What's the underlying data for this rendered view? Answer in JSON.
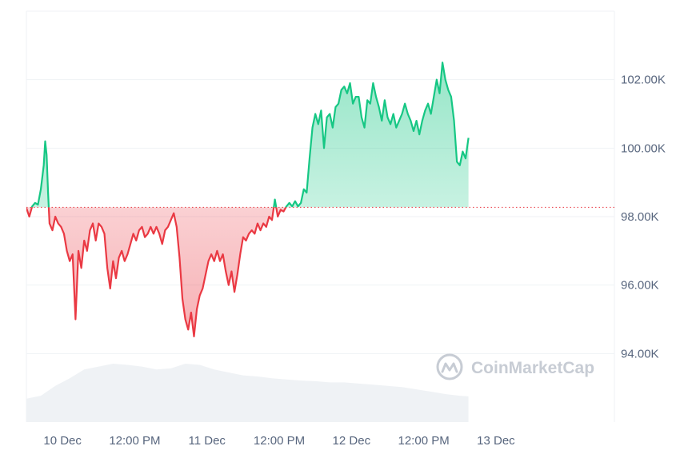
{
  "watermark": {
    "text": "CoinMarketCap"
  },
  "colors": {
    "up": "#16c784",
    "down": "#ea3943",
    "up_fill_top": "#16c784",
    "down_fill_bottom": "#ea3943",
    "grid": "#eff2f5",
    "baseline": "#ea3943",
    "volume": "#eff2f5",
    "text": "#58667e"
  },
  "chart_data": {
    "type": "area",
    "baseline_value": 98270,
    "ylim": [
      92000,
      104000
    ],
    "yticks": [
      {
        "value": 102000,
        "label": "102.00K"
      },
      {
        "value": 100000,
        "label": "100.00K"
      },
      {
        "value": 98000,
        "label": "98.00K"
      },
      {
        "value": 96000,
        "label": "96.00K"
      },
      {
        "value": 94000,
        "label": "94.00K"
      }
    ],
    "xlim": [
      0,
      4.07
    ],
    "xticks": [
      {
        "x": 0.25,
        "label": "10 Dec"
      },
      {
        "x": 0.75,
        "label": "12:00 PM"
      },
      {
        "x": 1.25,
        "label": "11 Dec"
      },
      {
        "x": 1.75,
        "label": "12:00 PM"
      },
      {
        "x": 2.25,
        "label": "12 Dec"
      },
      {
        "x": 2.75,
        "label": "12:00 PM"
      },
      {
        "x": 3.25,
        "label": "13 Dec"
      }
    ],
    "price_series": [
      [
        0.0,
        98250
      ],
      [
        0.02,
        98000
      ],
      [
        0.04,
        98300
      ],
      [
        0.06,
        98400
      ],
      [
        0.08,
        98350
      ],
      [
        0.1,
        98800
      ],
      [
        0.12,
        99500
      ],
      [
        0.13,
        100200
      ],
      [
        0.14,
        99800
      ],
      [
        0.15,
        98700
      ],
      [
        0.16,
        97800
      ],
      [
        0.18,
        97600
      ],
      [
        0.2,
        98000
      ],
      [
        0.22,
        97800
      ],
      [
        0.24,
        97700
      ],
      [
        0.26,
        97500
      ],
      [
        0.28,
        97000
      ],
      [
        0.3,
        96700
      ],
      [
        0.32,
        96900
      ],
      [
        0.34,
        95000
      ],
      [
        0.36,
        97000
      ],
      [
        0.38,
        96500
      ],
      [
        0.4,
        97300
      ],
      [
        0.42,
        97000
      ],
      [
        0.44,
        97600
      ],
      [
        0.46,
        97800
      ],
      [
        0.48,
        97300
      ],
      [
        0.5,
        97800
      ],
      [
        0.52,
        97700
      ],
      [
        0.54,
        97500
      ],
      [
        0.56,
        96500
      ],
      [
        0.58,
        95900
      ],
      [
        0.6,
        96700
      ],
      [
        0.62,
        96200
      ],
      [
        0.64,
        96800
      ],
      [
        0.66,
        97000
      ],
      [
        0.68,
        96700
      ],
      [
        0.7,
        96900
      ],
      [
        0.72,
        97200
      ],
      [
        0.74,
        97500
      ],
      [
        0.76,
        97300
      ],
      [
        0.78,
        97600
      ],
      [
        0.8,
        97700
      ],
      [
        0.82,
        97400
      ],
      [
        0.84,
        97500
      ],
      [
        0.86,
        97700
      ],
      [
        0.88,
        97500
      ],
      [
        0.9,
        97700
      ],
      [
        0.92,
        97500
      ],
      [
        0.94,
        97200
      ],
      [
        0.96,
        97600
      ],
      [
        0.98,
        97700
      ],
      [
        1.0,
        97900
      ],
      [
        1.02,
        98100
      ],
      [
        1.04,
        97700
      ],
      [
        1.06,
        96800
      ],
      [
        1.08,
        95600
      ],
      [
        1.1,
        95000
      ],
      [
        1.12,
        94700
      ],
      [
        1.14,
        95200
      ],
      [
        1.16,
        94500
      ],
      [
        1.18,
        95300
      ],
      [
        1.2,
        95700
      ],
      [
        1.22,
        95900
      ],
      [
        1.24,
        96300
      ],
      [
        1.26,
        96700
      ],
      [
        1.28,
        96900
      ],
      [
        1.3,
        96700
      ],
      [
        1.32,
        97000
      ],
      [
        1.34,
        96700
      ],
      [
        1.36,
        96900
      ],
      [
        1.38,
        96400
      ],
      [
        1.4,
        96000
      ],
      [
        1.42,
        96400
      ],
      [
        1.44,
        95800
      ],
      [
        1.46,
        96300
      ],
      [
        1.48,
        96900
      ],
      [
        1.5,
        97400
      ],
      [
        1.52,
        97300
      ],
      [
        1.54,
        97500
      ],
      [
        1.56,
        97600
      ],
      [
        1.58,
        97500
      ],
      [
        1.6,
        97800
      ],
      [
        1.62,
        97600
      ],
      [
        1.64,
        97800
      ],
      [
        1.66,
        97700
      ],
      [
        1.68,
        98000
      ],
      [
        1.7,
        97900
      ],
      [
        1.72,
        98500
      ],
      [
        1.74,
        98000
      ],
      [
        1.76,
        98200
      ],
      [
        1.78,
        98150
      ],
      [
        1.8,
        98300
      ],
      [
        1.82,
        98400
      ],
      [
        1.84,
        98300
      ],
      [
        1.86,
        98450
      ],
      [
        1.88,
        98300
      ],
      [
        1.9,
        98400
      ],
      [
        1.92,
        98800
      ],
      [
        1.94,
        98700
      ],
      [
        1.96,
        99700
      ],
      [
        1.98,
        100600
      ],
      [
        2.0,
        101000
      ],
      [
        2.02,
        100700
      ],
      [
        2.04,
        101100
      ],
      [
        2.06,
        100000
      ],
      [
        2.08,
        100900
      ],
      [
        2.1,
        101000
      ],
      [
        2.12,
        100600
      ],
      [
        2.14,
        101200
      ],
      [
        2.16,
        101300
      ],
      [
        2.18,
        101700
      ],
      [
        2.2,
        101800
      ],
      [
        2.22,
        101600
      ],
      [
        2.24,
        101900
      ],
      [
        2.26,
        101300
      ],
      [
        2.28,
        101500
      ],
      [
        2.3,
        101500
      ],
      [
        2.32,
        100900
      ],
      [
        2.34,
        100600
      ],
      [
        2.36,
        101400
      ],
      [
        2.38,
        101300
      ],
      [
        2.4,
        101900
      ],
      [
        2.42,
        101500
      ],
      [
        2.44,
        101200
      ],
      [
        2.46,
        100800
      ],
      [
        2.48,
        101400
      ],
      [
        2.5,
        100900
      ],
      [
        2.52,
        100700
      ],
      [
        2.54,
        101000
      ],
      [
        2.56,
        100600
      ],
      [
        2.58,
        100800
      ],
      [
        2.6,
        101000
      ],
      [
        2.62,
        101300
      ],
      [
        2.64,
        101000
      ],
      [
        2.66,
        100800
      ],
      [
        2.68,
        100500
      ],
      [
        2.7,
        100800
      ],
      [
        2.72,
        100400
      ],
      [
        2.74,
        100800
      ],
      [
        2.76,
        101100
      ],
      [
        2.78,
        101300
      ],
      [
        2.8,
        101000
      ],
      [
        2.82,
        101500
      ],
      [
        2.84,
        102000
      ],
      [
        2.86,
        101600
      ],
      [
        2.88,
        102500
      ],
      [
        2.9,
        102000
      ],
      [
        2.92,
        101700
      ],
      [
        2.94,
        101500
      ],
      [
        2.96,
        100800
      ],
      [
        2.98,
        99600
      ],
      [
        3.0,
        99500
      ],
      [
        3.02,
        99900
      ],
      [
        3.04,
        99700
      ],
      [
        3.06,
        100300
      ]
    ],
    "volume_series": [
      [
        0.0,
        0.4
      ],
      [
        0.1,
        0.45
      ],
      [
        0.2,
        0.62
      ],
      [
        0.3,
        0.75
      ],
      [
        0.4,
        0.9
      ],
      [
        0.5,
        0.95
      ],
      [
        0.6,
        1.0
      ],
      [
        0.7,
        0.98
      ],
      [
        0.8,
        0.95
      ],
      [
        0.9,
        0.9
      ],
      [
        1.0,
        0.92
      ],
      [
        1.1,
        1.0
      ],
      [
        1.2,
        0.98
      ],
      [
        1.3,
        0.9
      ],
      [
        1.4,
        0.85
      ],
      [
        1.5,
        0.8
      ],
      [
        1.6,
        0.78
      ],
      [
        1.7,
        0.75
      ],
      [
        1.8,
        0.73
      ],
      [
        1.9,
        0.71
      ],
      [
        2.0,
        0.7
      ],
      [
        2.1,
        0.68
      ],
      [
        2.2,
        0.68
      ],
      [
        2.3,
        0.66
      ],
      [
        2.4,
        0.64
      ],
      [
        2.5,
        0.62
      ],
      [
        2.6,
        0.6
      ],
      [
        2.7,
        0.56
      ],
      [
        2.8,
        0.52
      ],
      [
        2.9,
        0.48
      ],
      [
        3.0,
        0.45
      ],
      [
        3.06,
        0.44
      ]
    ]
  }
}
